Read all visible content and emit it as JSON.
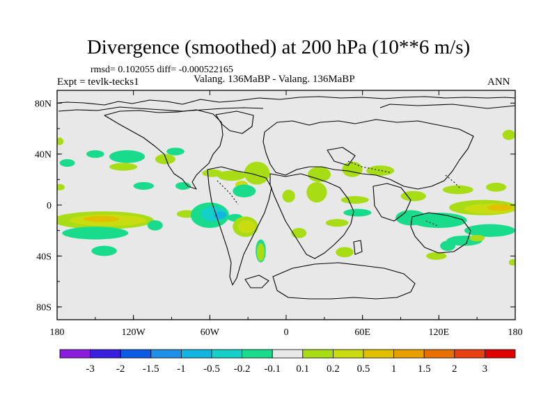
{
  "chart_data": {
    "type": "heatmap",
    "title": "Divergence (smoothed) at 200 hPa (10**6 m/s)",
    "stats_text": "rmsd= 0.102055 diff= -0.000522165",
    "left_label": "Expt = tevlk-tecks1",
    "center_label": "Valang. 136MaBP - Valang. 136MaBP",
    "right_label": "ANN",
    "x_range": [
      -180,
      180
    ],
    "y_range": [
      -90,
      90
    ],
    "x_ticks": [
      {
        "value": -180,
        "label": "180"
      },
      {
        "value": -120,
        "label": "120W"
      },
      {
        "value": -60,
        "label": "60W"
      },
      {
        "value": 0,
        "label": "0"
      },
      {
        "value": 60,
        "label": "60E"
      },
      {
        "value": 120,
        "label": "120E"
      },
      {
        "value": 180,
        "label": "180"
      }
    ],
    "y_ticks": [
      {
        "value": 80,
        "label": "80N"
      },
      {
        "value": 40,
        "label": "40N"
      },
      {
        "value": 0,
        "label": "0"
      },
      {
        "value": -40,
        "label": "40S"
      },
      {
        "value": -80,
        "label": "80S"
      }
    ],
    "colorbar": {
      "colors": [
        "#8a1ce0",
        "#3a1fe0",
        "#0d5ae6",
        "#1e90e8",
        "#12b4e0",
        "#14d0c8",
        "#18dc8c",
        "#e8e8e8",
        "#a8dc14",
        "#c8dc10",
        "#e0c000",
        "#e8a000",
        "#e87000",
        "#e84010",
        "#e00000"
      ],
      "labels": [
        "-3",
        "-2",
        "-1.5",
        "-1",
        "-0.5",
        "-0.2",
        "-0.1",
        "0.1",
        "0.2",
        "0.5",
        "1",
        "1.5",
        "2",
        "3"
      ]
    },
    "regions": [
      {
        "lon": -178,
        "lat": 14,
        "rx": 4,
        "ry": 2.5,
        "level": 0.15
      },
      {
        "lon": -178,
        "lat": 50,
        "rx": 3,
        "ry": 3,
        "level": 0.15
      },
      {
        "lon": -172,
        "lat": 33,
        "rx": 6,
        "ry": 3,
        "level": -0.15
      },
      {
        "lon": -150,
        "lat": 40,
        "rx": 7,
        "ry": 3,
        "level": -0.15
      },
      {
        "lon": -125,
        "lat": 38,
        "rx": 14,
        "ry": 5,
        "level": -0.15
      },
      {
        "lon": -128,
        "lat": 30,
        "rx": 11,
        "ry": 3,
        "level": 0.15
      },
      {
        "lon": -95,
        "lat": 36,
        "rx": 8,
        "ry": 4,
        "level": 0.15
      },
      {
        "lon": -87,
        "lat": 42,
        "rx": 7,
        "ry": 3,
        "level": -0.15
      },
      {
        "lon": -112,
        "lat": 15,
        "rx": 8,
        "ry": 3,
        "level": -0.15
      },
      {
        "lon": -81,
        "lat": 15,
        "rx": 6,
        "ry": 3,
        "level": -0.15
      },
      {
        "lon": -58,
        "lat": 25,
        "rx": 8,
        "ry": 3,
        "level": 0.15
      },
      {
        "lon": -144,
        "lat": -12,
        "rx": 40,
        "ry": 7,
        "level": 0.15
      },
      {
        "lon": -140,
        "lat": -12,
        "rx": 30,
        "ry": 4.5,
        "level": 0.3
      },
      {
        "lon": -145,
        "lat": -11,
        "rx": 14,
        "ry": 2.5,
        "level": 0.7
      },
      {
        "lon": -150,
        "lat": -22,
        "rx": 26,
        "ry": 5,
        "level": -0.15
      },
      {
        "lon": -143,
        "lat": -36,
        "rx": 10,
        "ry": 4,
        "level": -0.15
      },
      {
        "lon": -103,
        "lat": -16,
        "rx": 6,
        "ry": 4,
        "level": -0.15
      },
      {
        "lon": -78,
        "lat": -7,
        "rx": 8,
        "ry": 3,
        "level": 0.15
      },
      {
        "lon": -60,
        "lat": -8,
        "rx": 15,
        "ry": 10,
        "level": -0.15
      },
      {
        "lon": -57,
        "lat": -7,
        "rx": 10,
        "ry": 6,
        "level": -0.3
      },
      {
        "lon": -52,
        "lat": -8,
        "rx": 5,
        "ry": 3,
        "level": -0.6
      },
      {
        "lon": -40,
        "lat": -10,
        "rx": 6,
        "ry": 3,
        "level": -0.15
      },
      {
        "lon": -43,
        "lat": 23,
        "rx": 11,
        "ry": 4,
        "level": 0.15
      },
      {
        "lon": -23,
        "lat": 25,
        "rx": 10,
        "ry": 9,
        "level": 0.15
      },
      {
        "lon": -35,
        "lat": 16,
        "rx": 5,
        "ry": 3,
        "level": 0.3
      },
      {
        "lon": -33,
        "lat": 11,
        "rx": 9,
        "ry": 5,
        "level": -0.15
      },
      {
        "lon": -32,
        "lat": -17,
        "rx": 10,
        "ry": 8,
        "level": 0.15
      },
      {
        "lon": -31,
        "lat": -17,
        "rx": 7,
        "ry": 5,
        "level": 0.4
      },
      {
        "lon": -20,
        "lat": -36,
        "rx": 4,
        "ry": 9,
        "level": -0.15
      },
      {
        "lon": -20,
        "lat": -37,
        "rx": 3,
        "ry": 7,
        "level": 0.15
      },
      {
        "lon": 2,
        "lat": 7,
        "rx": 5,
        "ry": 5,
        "level": 0.15
      },
      {
        "lon": 24,
        "lat": 10,
        "rx": 8,
        "ry": 8,
        "level": 0.15
      },
      {
        "lon": 26,
        "lat": 24,
        "rx": 9,
        "ry": 6,
        "level": 0.15
      },
      {
        "lon": 52,
        "lat": 28,
        "rx": 8,
        "ry": 6,
        "level": 0.15
      },
      {
        "lon": 74,
        "lat": 27,
        "rx": 11,
        "ry": 4,
        "level": 0.15
      },
      {
        "lon": 54,
        "lat": 4,
        "rx": 11,
        "ry": 3,
        "level": 0.15
      },
      {
        "lon": 56,
        "lat": -6,
        "rx": 11,
        "ry": 3,
        "level": -0.15
      },
      {
        "lon": 40,
        "lat": -14,
        "rx": 9,
        "ry": 3,
        "level": 0.15
      },
      {
        "lon": 10,
        "lat": -22,
        "rx": 6,
        "ry": 4,
        "level": 0.15
      },
      {
        "lon": 100,
        "lat": 7,
        "rx": 10,
        "ry": 4,
        "level": 0.15
      },
      {
        "lon": 135,
        "lat": 12,
        "rx": 12,
        "ry": 3.5,
        "level": 0.15
      },
      {
        "lon": 165,
        "lat": 14,
        "rx": 8,
        "ry": 3.5,
        "level": 0.15
      },
      {
        "lon": 155,
        "lat": -2,
        "rx": 27,
        "ry": 6,
        "level": 0.15
      },
      {
        "lon": 160,
        "lat": -3,
        "rx": 20,
        "ry": 4,
        "level": 0.3
      },
      {
        "lon": 168,
        "lat": -2,
        "rx": 10,
        "ry": 2.5,
        "level": 0.7
      },
      {
        "lon": 98,
        "lat": -10,
        "rx": 12,
        "ry": 6,
        "level": -0.15
      },
      {
        "lon": 120,
        "lat": -12,
        "rx": 22,
        "ry": 6,
        "level": -0.15
      },
      {
        "lon": 160,
        "lat": -20,
        "rx": 20,
        "ry": 5,
        "level": -0.15
      },
      {
        "lon": 140,
        "lat": -28,
        "rx": 14,
        "ry": 4,
        "level": -0.15
      },
      {
        "lon": 150,
        "lat": -26,
        "rx": 6,
        "ry": 2.5,
        "level": 0.15
      },
      {
        "lon": 127,
        "lat": -32,
        "rx": 6,
        "ry": 4,
        "level": -0.15
      },
      {
        "lon": 118,
        "lat": -40,
        "rx": 8,
        "ry": 3,
        "level": 0.15
      },
      {
        "lon": 46,
        "lat": -37,
        "rx": 7,
        "ry": 4,
        "level": 0.15
      },
      {
        "lon": 175,
        "lat": 55,
        "rx": 5,
        "ry": 4,
        "level": 0.15
      },
      {
        "lon": 178,
        "lat": -45,
        "rx": 3,
        "ry": 2.5,
        "level": 0.15
      }
    ]
  }
}
